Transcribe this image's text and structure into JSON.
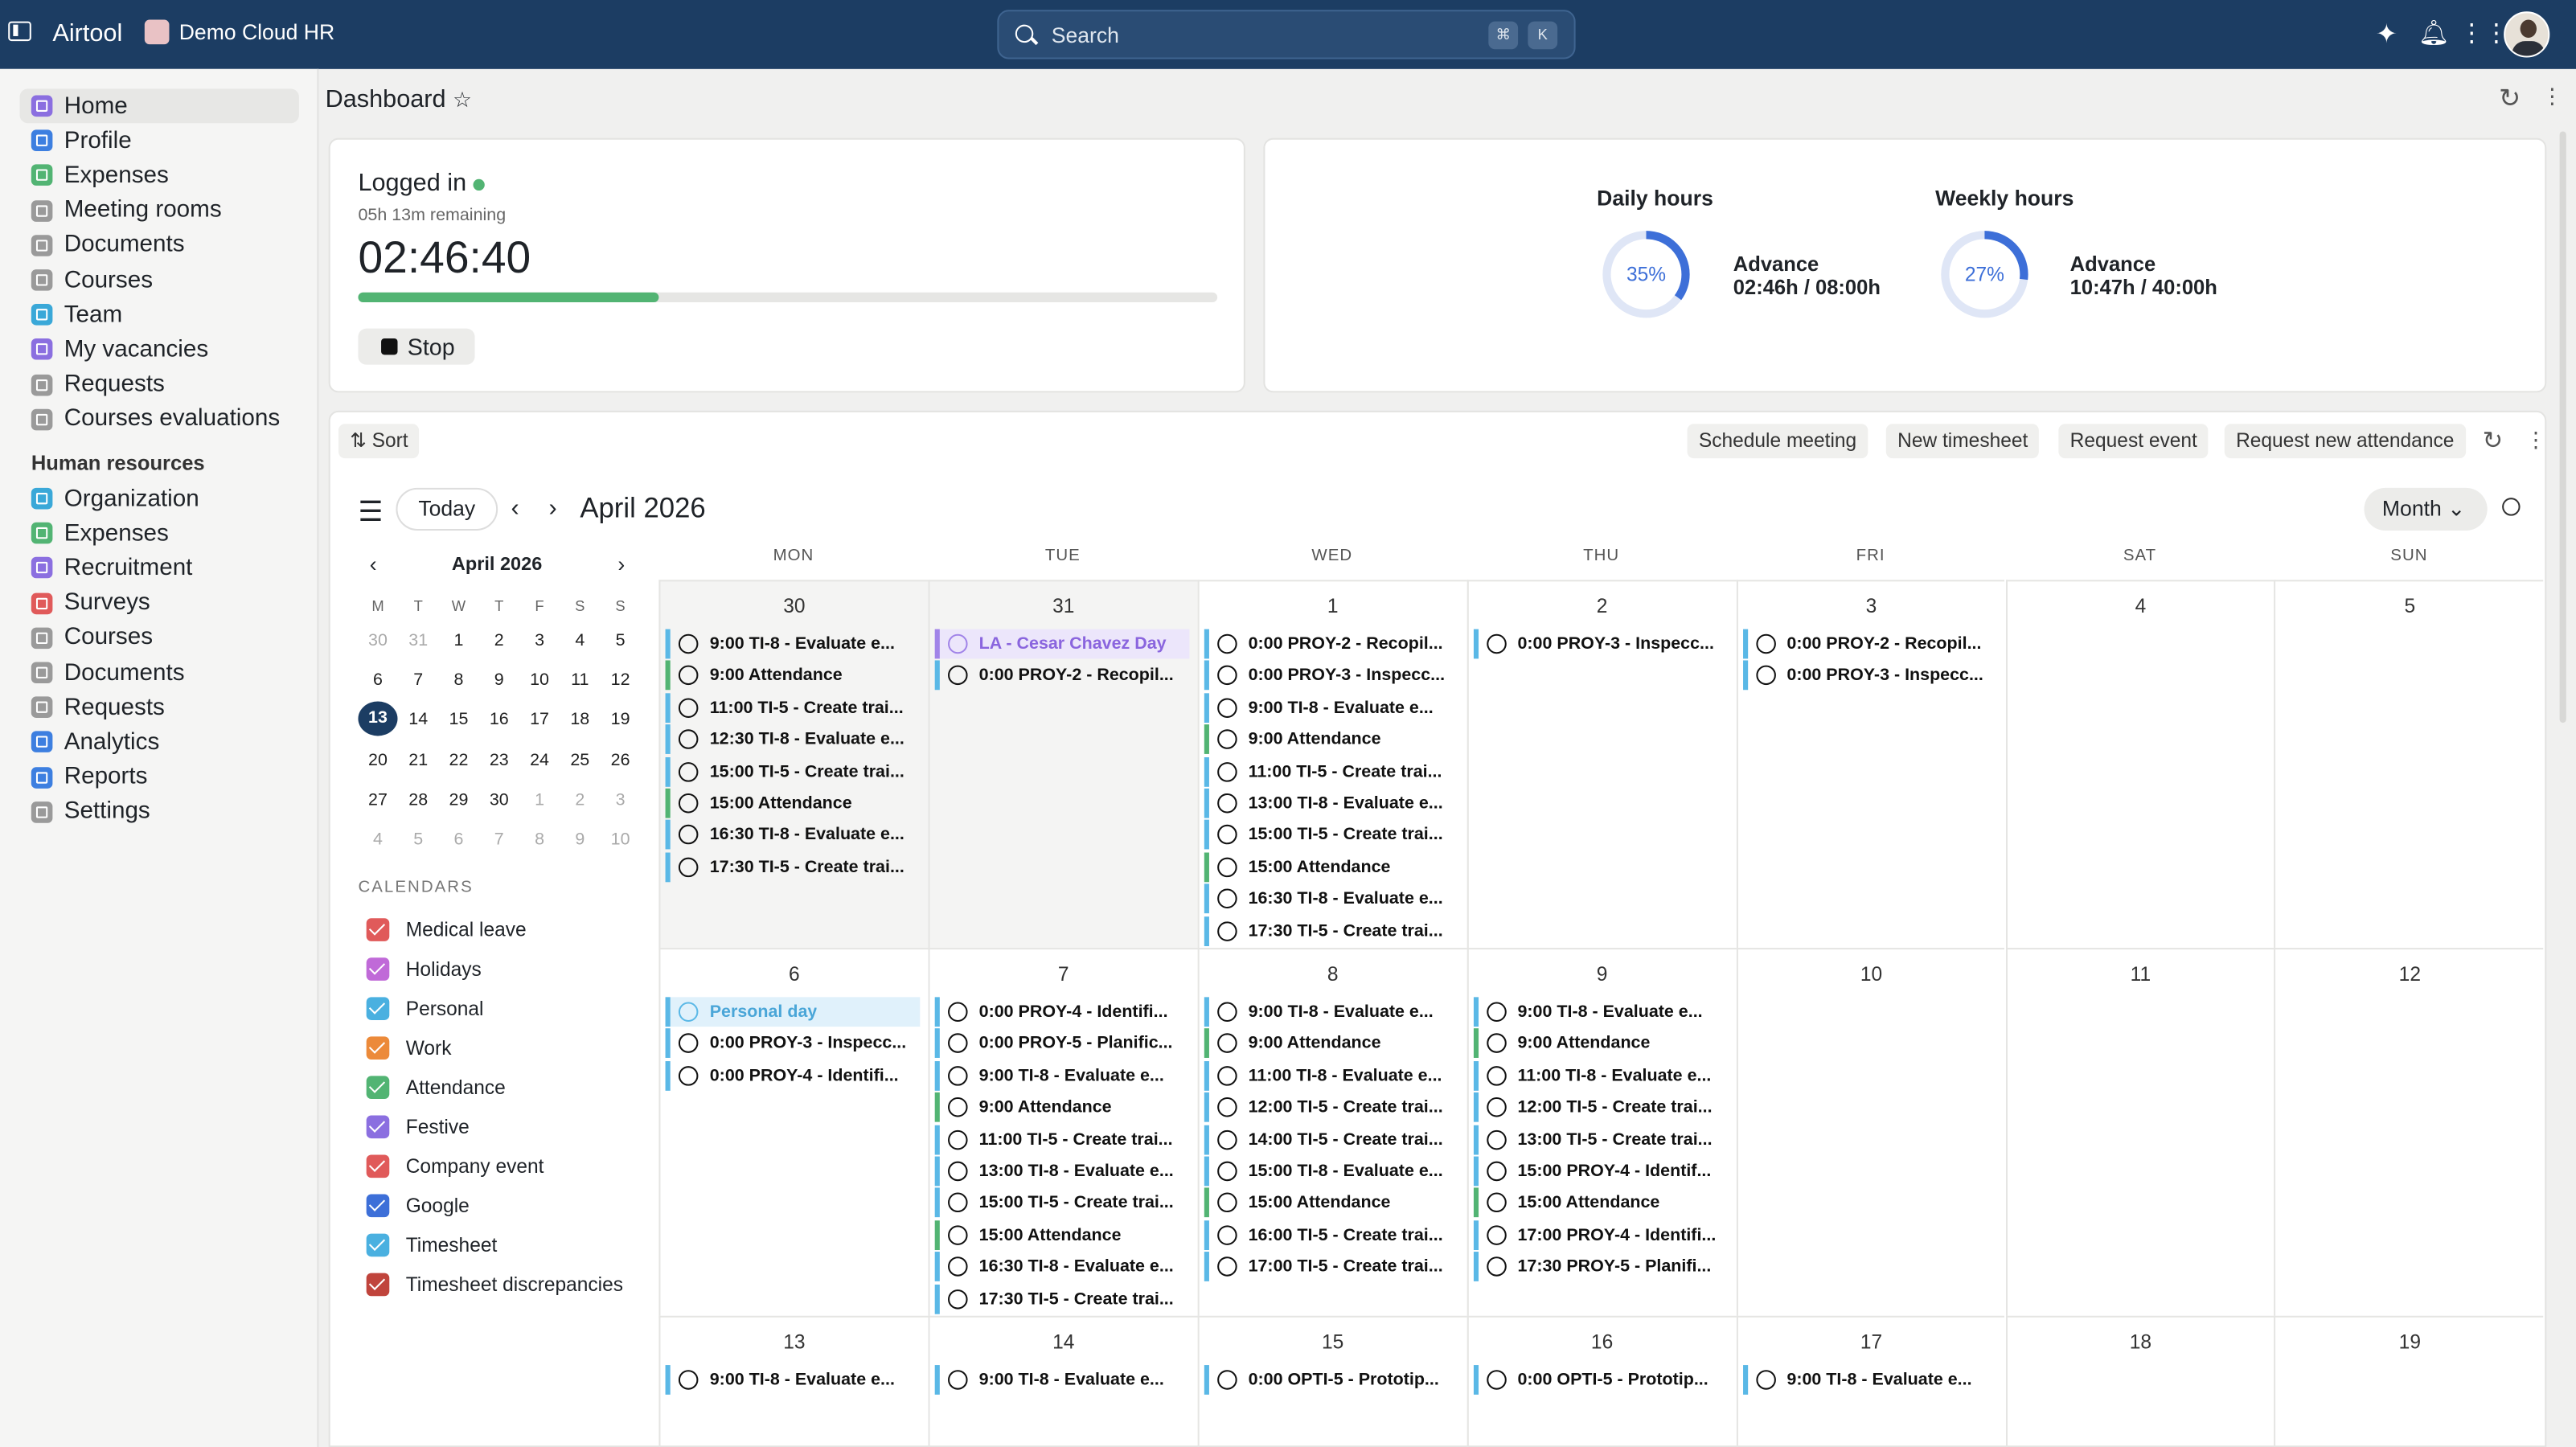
{
  "topbar": {
    "app": "Airtool",
    "org": "Demo Cloud HR",
    "search_placeholder": "Search",
    "kbd1": "⌘",
    "kbd2": "K"
  },
  "sidebar": {
    "items": [
      {
        "label": "Home",
        "color": "#8b6fe0"
      },
      {
        "label": "Profile",
        "color": "#3d7fe0"
      },
      {
        "label": "Expenses",
        "color": "#52b473"
      },
      {
        "label": "Meeting rooms",
        "color": "#9a9a9a"
      },
      {
        "label": "Documents",
        "color": "#9a9a9a"
      },
      {
        "label": "Courses",
        "color": "#9a9a9a"
      },
      {
        "label": "Team",
        "color": "#3aa8d8"
      },
      {
        "label": "My vacancies",
        "color": "#8b6fe0"
      },
      {
        "label": "Requests",
        "color": "#9a9a9a"
      },
      {
        "label": "Courses evaluations",
        "color": "#9a9a9a"
      }
    ],
    "hr_heading": "Human resources",
    "hr_items": [
      {
        "label": "Organization",
        "color": "#3aa8d8"
      },
      {
        "label": "Expenses",
        "color": "#52b473"
      },
      {
        "label": "Recruitment",
        "color": "#8b6fe0"
      },
      {
        "label": "Surveys",
        "color": "#e05a5a"
      },
      {
        "label": "Courses",
        "color": "#9a9a9a"
      },
      {
        "label": "Documents",
        "color": "#9a9a9a"
      },
      {
        "label": "Requests",
        "color": "#9a9a9a"
      },
      {
        "label": "Analytics",
        "color": "#3d7fe0"
      },
      {
        "label": "Reports",
        "color": "#3d7fe0"
      },
      {
        "label": "Settings",
        "color": "#9a9a9a"
      }
    ]
  },
  "header": {
    "title": "Dashboard"
  },
  "clock": {
    "status": "Logged in",
    "remaining": "05h 13m remaining",
    "time": "02:46:40",
    "progress": 0.35,
    "stop_label": "Stop"
  },
  "hours": {
    "daily_title": "Daily hours",
    "daily_pct": "35%",
    "daily_value": 35,
    "daily_label": "Advance",
    "daily_detail": "02:46h / 08:00h",
    "weekly_title": "Weekly hours",
    "weekly_pct": "27%",
    "weekly_value": 27,
    "weekly_label": "Advance",
    "weekly_detail": "10:47h / 40:00h"
  },
  "toolbar": {
    "sort": "Sort",
    "schedule": "Schedule meeting",
    "timesheet": "New timesheet",
    "request_event": "Request event",
    "request_att": "Request new attendance"
  },
  "calendar": {
    "today": "Today",
    "month_title": "April 2026",
    "view": "Month",
    "dows": [
      "MON",
      "TUE",
      "WED",
      "THU",
      "FRI",
      "SAT",
      "SUN"
    ],
    "weeks": [
      [
        {
          "d": "30",
          "past": true,
          "ev": [
            [
              "9:00",
              "TI-8 - Evaluate e...",
              ""
            ],
            [
              "9:00",
              "Attendance",
              "att"
            ],
            [
              "11:00",
              "TI-5 - Create trai...",
              ""
            ],
            [
              "12:30",
              "TI-8 - Evaluate e...",
              ""
            ],
            [
              "15:00",
              "TI-5 - Create trai...",
              ""
            ],
            [
              "15:00",
              "Attendance",
              "att"
            ],
            [
              "16:30",
              "TI-8 - Evaluate e...",
              ""
            ],
            [
              "17:30",
              "TI-5 - Create trai...",
              ""
            ]
          ]
        },
        {
          "d": "31",
          "past": true,
          "ev": [
            [
              "",
              "LA - Cesar Chavez Day",
              "fest"
            ],
            [
              "0:00",
              "PROY-2 - Recopil...",
              ""
            ]
          ]
        },
        {
          "d": "1",
          "ev": [
            [
              "0:00",
              "PROY-2 - Recopil...",
              ""
            ],
            [
              "0:00",
              "PROY-3 - Inspecc...",
              ""
            ],
            [
              "9:00",
              "TI-8 - Evaluate e...",
              ""
            ],
            [
              "9:00",
              "Attendance",
              "att"
            ],
            [
              "11:00",
              "TI-5 - Create trai...",
              ""
            ],
            [
              "13:00",
              "TI-8 - Evaluate e...",
              ""
            ],
            [
              "15:00",
              "TI-5 - Create trai...",
              ""
            ],
            [
              "15:00",
              "Attendance",
              "att"
            ],
            [
              "16:30",
              "TI-8 - Evaluate e...",
              ""
            ],
            [
              "17:30",
              "TI-5 - Create trai...",
              ""
            ]
          ]
        },
        {
          "d": "2",
          "ev": [
            [
              "0:00",
              "PROY-3 - Inspecc...",
              ""
            ]
          ]
        },
        {
          "d": "3",
          "ev": [
            [
              "0:00",
              "PROY-2 - Recopil...",
              ""
            ],
            [
              "0:00",
              "PROY-3 - Inspecc...",
              ""
            ]
          ]
        },
        {
          "d": "4",
          "ev": []
        },
        {
          "d": "5",
          "ev": []
        }
      ],
      [
        {
          "d": "6",
          "ev": [
            [
              "",
              "Personal day",
              "pers"
            ],
            [
              "0:00",
              "PROY-3 - Inspecc...",
              ""
            ],
            [
              "0:00",
              "PROY-4 - Identifi...",
              ""
            ]
          ]
        },
        {
          "d": "7",
          "ev": [
            [
              "0:00",
              "PROY-4 - Identifi...",
              ""
            ],
            [
              "0:00",
              "PROY-5 - Planific...",
              ""
            ],
            [
              "9:00",
              "TI-8 - Evaluate e...",
              ""
            ],
            [
              "9:00",
              "Attendance",
              "att"
            ],
            [
              "11:00",
              "TI-5 - Create trai...",
              ""
            ],
            [
              "13:00",
              "TI-8 - Evaluate e...",
              ""
            ],
            [
              "15:00",
              "TI-5 - Create trai...",
              ""
            ],
            [
              "15:00",
              "Attendance",
              "att"
            ],
            [
              "16:30",
              "TI-8 - Evaluate e...",
              ""
            ],
            [
              "17:30",
              "TI-5 - Create trai...",
              ""
            ]
          ]
        },
        {
          "d": "8",
          "ev": [
            [
              "9:00",
              "TI-8 - Evaluate e...",
              ""
            ],
            [
              "9:00",
              "Attendance",
              "att"
            ],
            [
              "11:00",
              "TI-8 - Evaluate e...",
              ""
            ],
            [
              "12:00",
              "TI-5 - Create trai...",
              ""
            ],
            [
              "14:00",
              "TI-5 - Create trai...",
              ""
            ],
            [
              "15:00",
              "TI-8 - Evaluate e...",
              ""
            ],
            [
              "15:00",
              "Attendance",
              "att"
            ],
            [
              "16:00",
              "TI-5 - Create trai...",
              ""
            ],
            [
              "17:00",
              "TI-5 - Create trai...",
              ""
            ]
          ]
        },
        {
          "d": "9",
          "ev": [
            [
              "9:00",
              "TI-8 - Evaluate e...",
              ""
            ],
            [
              "9:00",
              "Attendance",
              "att"
            ],
            [
              "11:00",
              "TI-8 - Evaluate e...",
              ""
            ],
            [
              "12:00",
              "TI-5 - Create trai...",
              ""
            ],
            [
              "13:00",
              "TI-5 - Create trai...",
              ""
            ],
            [
              "15:00",
              "PROY-4 - Identif...",
              ""
            ],
            [
              "15:00",
              "Attendance",
              "att"
            ],
            [
              "17:00",
              "PROY-4 - Identifi...",
              ""
            ],
            [
              "17:30",
              "PROY-5 - Planifi...",
              ""
            ]
          ]
        },
        {
          "d": "10",
          "ev": []
        },
        {
          "d": "11",
          "ev": []
        },
        {
          "d": "12",
          "ev": []
        }
      ],
      [
        {
          "d": "13",
          "ev": [
            [
              "9:00",
              "TI-8 - Evaluate e...",
              ""
            ]
          ]
        },
        {
          "d": "14",
          "ev": [
            [
              "9:00",
              "TI-8 - Evaluate e...",
              ""
            ]
          ]
        },
        {
          "d": "15",
          "ev": [
            [
              "0:00",
              "OPTI-5 - Prototip...",
              ""
            ]
          ]
        },
        {
          "d": "16",
          "ev": [
            [
              "0:00",
              "OPTI-5 - Prototip...",
              ""
            ]
          ]
        },
        {
          "d": "17",
          "ev": [
            [
              "9:00",
              "TI-8 - Evaluate e...",
              ""
            ]
          ]
        },
        {
          "d": "18",
          "ev": []
        },
        {
          "d": "19",
          "ev": []
        }
      ]
    ]
  },
  "mini": {
    "title": "April 2026",
    "dows": [
      "M",
      "T",
      "W",
      "T",
      "F",
      "S",
      "S"
    ],
    "days": [
      [
        "30",
        "31",
        "1",
        "2",
        "3",
        "4",
        "5"
      ],
      [
        "6",
        "7",
        "8",
        "9",
        "10",
        "11",
        "12"
      ],
      [
        "13",
        "14",
        "15",
        "16",
        "17",
        "18",
        "19"
      ],
      [
        "20",
        "21",
        "22",
        "23",
        "24",
        "25",
        "26"
      ],
      [
        "27",
        "28",
        "29",
        "30",
        "1",
        "2",
        "3"
      ],
      [
        "4",
        "5",
        "6",
        "7",
        "8",
        "9",
        "10"
      ]
    ],
    "today": "13"
  },
  "calendars": {
    "heading": "CALENDARS",
    "items": [
      {
        "label": "Medical leave",
        "color": "#e05a5a"
      },
      {
        "label": "Holidays",
        "color": "#c06ad8"
      },
      {
        "label": "Personal",
        "color": "#4ab0e0"
      },
      {
        "label": "Work",
        "color": "#ec8a3a"
      },
      {
        "label": "Attendance",
        "color": "#52b473"
      },
      {
        "label": "Festive",
        "color": "#8b6fe0"
      },
      {
        "label": "Company event",
        "color": "#e05a5a"
      },
      {
        "label": "Google",
        "color": "#3d6fd8"
      },
      {
        "label": "Timesheet",
        "color": "#4ab0e0"
      },
      {
        "label": "Timesheet discrepancies",
        "color": "#c0443c"
      }
    ]
  }
}
